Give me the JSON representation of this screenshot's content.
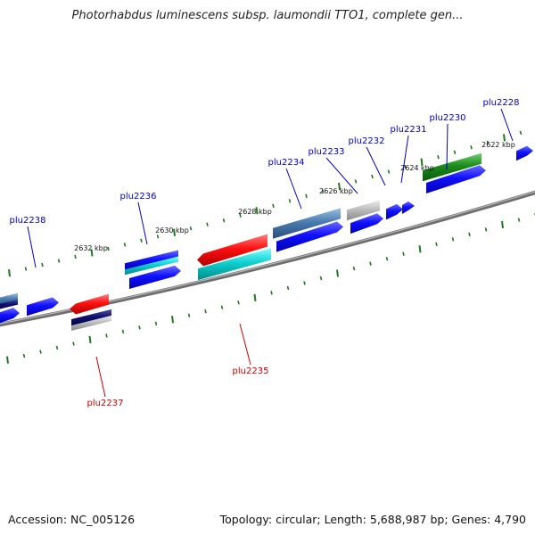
{
  "title": "Photorhabdus luminescens subsp. laumondii TTO1, complete gen...",
  "footer": {
    "accession": "Accession: NC_005126",
    "summary": "Topology: circular; Length: 5,688,987 bp; Genes: 4,790"
  },
  "ticks": [
    "2622 kbp",
    "2624 kbp",
    "2626 kbp",
    "2628 kbp",
    "2630 kbp",
    "2632 kbp"
  ],
  "genes": [
    {
      "name": "plu2228",
      "color": "#0000cc"
    },
    {
      "name": "plu2230",
      "color": "#0000cc"
    },
    {
      "name": "plu2231",
      "color": "#0000cc"
    },
    {
      "name": "plu2232",
      "color": "#0000cc"
    },
    {
      "name": "plu2233",
      "color": "#0000cc"
    },
    {
      "name": "plu2234",
      "color": "#0000cc"
    },
    {
      "name": "plu2235",
      "color": "#cc0000"
    },
    {
      "name": "plu2236",
      "color": "#0000cc"
    },
    {
      "name": "plu2237",
      "color": "#cc0000"
    },
    {
      "name": "plu2238",
      "color": "#0000cc"
    }
  ]
}
